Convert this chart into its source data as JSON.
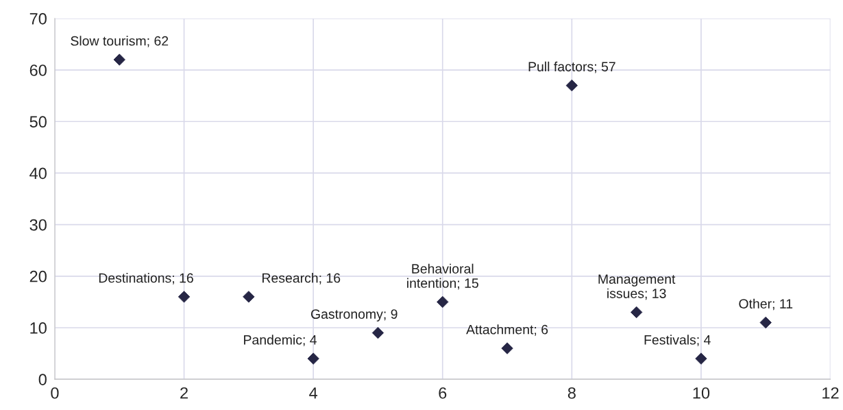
{
  "chart_data": {
    "type": "scatter",
    "x": [
      1,
      2,
      3,
      4,
      5,
      6,
      7,
      8,
      9,
      10,
      11
    ],
    "values": [
      62,
      16,
      16,
      4,
      9,
      15,
      6,
      57,
      13,
      4,
      11
    ],
    "value_labels": [
      "Slow tourism; 62",
      "Destinations; 16",
      "Research; 16",
      "Pandemic; 4",
      "Gastronomy; 9",
      "Behavioral\nintention; 15",
      "Attachment; 6",
      "Pull factors; 57",
      "Management\nissues; 13",
      "Festivals; 4",
      "Other; 11"
    ],
    "color": "#262645",
    "marker": "diamond",
    "xlim": [
      0,
      12
    ],
    "xticks": [
      0,
      2,
      4,
      6,
      8,
      10,
      12
    ],
    "ylim": [
      0,
      70
    ],
    "yticks": [
      0,
      10,
      20,
      30,
      40,
      50,
      60,
      70
    ],
    "grid": true,
    "legend": false
  }
}
